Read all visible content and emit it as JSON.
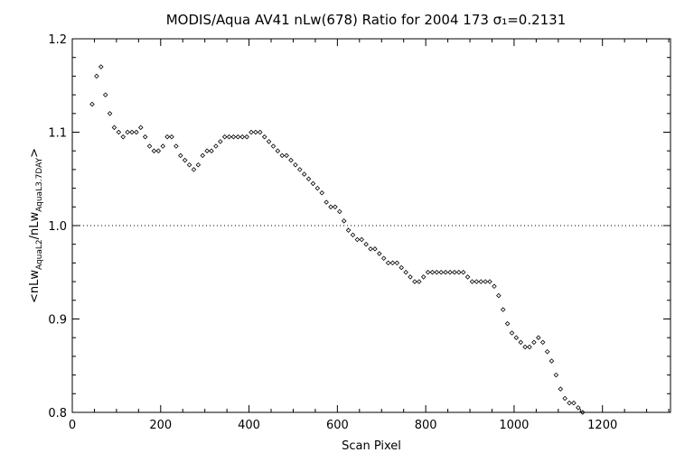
{
  "chart_data": {
    "type": "scatter",
    "title": "MODIS/Aqua AV41 nLw(678) Ratio for 2004 173 σ₁=0.2131",
    "xlabel": "Scan Pixel",
    "ylabel": "<nLw_AquaL2/nLw_AquaL3.7DAY>",
    "xlim": [
      0,
      1354
    ],
    "ylim": [
      0.8,
      1.2
    ],
    "xticks": [
      0,
      200,
      400,
      600,
      800,
      1000,
      1200
    ],
    "yticks": [
      0.8,
      0.9,
      1.0,
      1.1,
      1.2
    ],
    "reference_line": 1.0,
    "marker": "diamond",
    "grid": false,
    "series": [
      {
        "x": [
          45,
          55,
          65,
          75,
          85,
          95,
          105,
          115,
          125,
          135,
          145,
          155,
          165,
          175,
          185,
          195,
          205,
          215,
          225,
          235,
          245,
          255,
          265,
          275,
          285,
          295,
          305,
          315,
          325,
          335,
          345,
          355,
          365,
          375,
          385,
          395,
          405,
          415,
          425,
          435,
          445,
          455,
          465,
          475,
          485,
          495,
          505,
          515,
          525,
          535,
          545,
          555,
          565,
          575,
          585,
          595,
          605,
          615,
          625,
          635,
          645,
          655,
          665,
          675,
          685,
          695,
          705,
          715,
          725,
          735,
          745,
          755,
          765,
          775,
          785,
          795,
          805,
          815,
          825,
          835,
          845,
          855,
          865,
          875,
          885,
          895,
          905,
          915,
          925,
          935,
          945,
          955,
          965,
          975,
          985,
          995,
          1005,
          1015,
          1025,
          1035,
          1045,
          1055,
          1065,
          1075,
          1085,
          1095,
          1105,
          1115,
          1125,
          1135,
          1145,
          1155
        ],
        "y": [
          1.13,
          1.16,
          1.17,
          1.14,
          1.12,
          1.105,
          1.1,
          1.095,
          1.1,
          1.1,
          1.1,
          1.105,
          1.095,
          1.085,
          1.08,
          1.08,
          1.085,
          1.095,
          1.095,
          1.085,
          1.075,
          1.07,
          1.065,
          1.06,
          1.065,
          1.075,
          1.08,
          1.08,
          1.085,
          1.09,
          1.095,
          1.095,
          1.095,
          1.095,
          1.095,
          1.095,
          1.1,
          1.1,
          1.1,
          1.095,
          1.09,
          1.085,
          1.08,
          1.075,
          1.075,
          1.07,
          1.065,
          1.06,
          1.055,
          1.05,
          1.045,
          1.04,
          1.035,
          1.025,
          1.02,
          1.02,
          1.015,
          1.005,
          0.995,
          0.99,
          0.985,
          0.985,
          0.98,
          0.975,
          0.975,
          0.97,
          0.965,
          0.96,
          0.96,
          0.96,
          0.955,
          0.95,
          0.945,
          0.94,
          0.94,
          0.945,
          0.95,
          0.95,
          0.95,
          0.95,
          0.95,
          0.95,
          0.95,
          0.95,
          0.95,
          0.945,
          0.94,
          0.94,
          0.94,
          0.94,
          0.94,
          0.935,
          0.925,
          0.91,
          0.895,
          0.885,
          0.88,
          0.875,
          0.87,
          0.87,
          0.875,
          0.88,
          0.875,
          0.865,
          0.855,
          0.84,
          0.825,
          0.815,
          0.81,
          0.81,
          0.805,
          0.8
        ]
      }
    ]
  }
}
